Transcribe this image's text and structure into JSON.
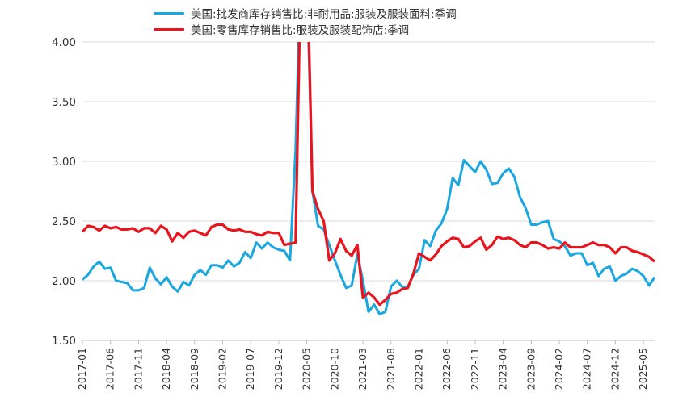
{
  "chart_data": {
    "type": "line",
    "title": "",
    "xlabel": "",
    "ylabel": "",
    "ylim": [
      1.5,
      4.0
    ],
    "y_ticks": [
      "1.50",
      "2.00",
      "2.50",
      "3.00",
      "3.50",
      "4.00"
    ],
    "x_tick_labels": [
      "2017-01",
      "2017-06",
      "2017-11",
      "2018-04",
      "2018-09",
      "2019-02",
      "2019-07",
      "2019-12",
      "2020-05",
      "2020-10",
      "2021-03",
      "2021-08",
      "2022-01",
      "2022-06",
      "2022-11",
      "2023-04",
      "2023-09",
      "2024-02",
      "2024-07",
      "2024-12",
      "2025-05"
    ],
    "x_start": "2017-01",
    "grid": "horizontal",
    "legend_position": "top",
    "series": [
      {
        "name": "美国:批发商库存销售比:非耐用品:服装及服装面料:季调",
        "color": "#1aa7e0",
        "values": [
          2.01,
          2.05,
          2.12,
          2.16,
          2.1,
          2.11,
          2.0,
          1.99,
          1.98,
          1.92,
          1.92,
          1.94,
          2.11,
          2.02,
          1.97,
          2.03,
          1.95,
          1.91,
          1.99,
          1.96,
          2.05,
          2.09,
          2.05,
          2.13,
          2.13,
          2.11,
          2.17,
          2.12,
          2.15,
          2.24,
          2.19,
          2.32,
          2.27,
          2.32,
          2.28,
          2.26,
          2.25,
          2.17,
          3.1,
          4.8,
          4.6,
          2.75,
          2.46,
          2.43,
          2.3,
          2.17,
          2.05,
          1.94,
          1.96,
          2.22,
          2.0,
          1.74,
          1.8,
          1.72,
          1.74,
          1.95,
          2.0,
          1.95,
          1.95,
          2.05,
          2.1,
          2.34,
          2.29,
          2.42,
          2.48,
          2.6,
          2.86,
          2.8,
          3.01,
          2.96,
          2.91,
          3.0,
          2.93,
          2.81,
          2.82,
          2.9,
          2.94,
          2.87,
          2.7,
          2.61,
          2.47,
          2.47,
          2.49,
          2.5,
          2.35,
          2.33,
          2.29,
          2.21,
          2.23,
          2.23,
          2.13,
          2.15,
          2.04,
          2.1,
          2.12,
          2.0,
          2.04,
          2.06,
          2.1,
          2.08,
          2.04,
          1.96,
          2.03
        ]
      },
      {
        "name": "美国:零售库存销售比:服装及服装配饰店:季调",
        "color": "#e8141e",
        "values": [
          2.41,
          2.46,
          2.45,
          2.42,
          2.46,
          2.44,
          2.45,
          2.43,
          2.43,
          2.44,
          2.41,
          2.44,
          2.44,
          2.4,
          2.46,
          2.43,
          2.33,
          2.4,
          2.36,
          2.41,
          2.42,
          2.4,
          2.38,
          2.45,
          2.47,
          2.47,
          2.43,
          2.42,
          2.43,
          2.41,
          2.41,
          2.39,
          2.38,
          2.41,
          2.4,
          2.4,
          2.3,
          2.31,
          2.32,
          4.8,
          4.8,
          2.75,
          2.6,
          2.5,
          2.17,
          2.23,
          2.35,
          2.25,
          2.21,
          2.3,
          1.86,
          1.9,
          1.86,
          1.8,
          1.84,
          1.89,
          1.9,
          1.93,
          1.94,
          2.06,
          2.23,
          2.2,
          2.17,
          2.22,
          2.29,
          2.33,
          2.36,
          2.35,
          2.28,
          2.29,
          2.33,
          2.36,
          2.26,
          2.3,
          2.37,
          2.35,
          2.36,
          2.34,
          2.3,
          2.28,
          2.32,
          2.32,
          2.3,
          2.27,
          2.28,
          2.27,
          2.32,
          2.28,
          2.28,
          2.28,
          2.3,
          2.32,
          2.3,
          2.3,
          2.28,
          2.23,
          2.28,
          2.28,
          2.25,
          2.24,
          2.22,
          2.2,
          2.16
        ]
      }
    ]
  }
}
